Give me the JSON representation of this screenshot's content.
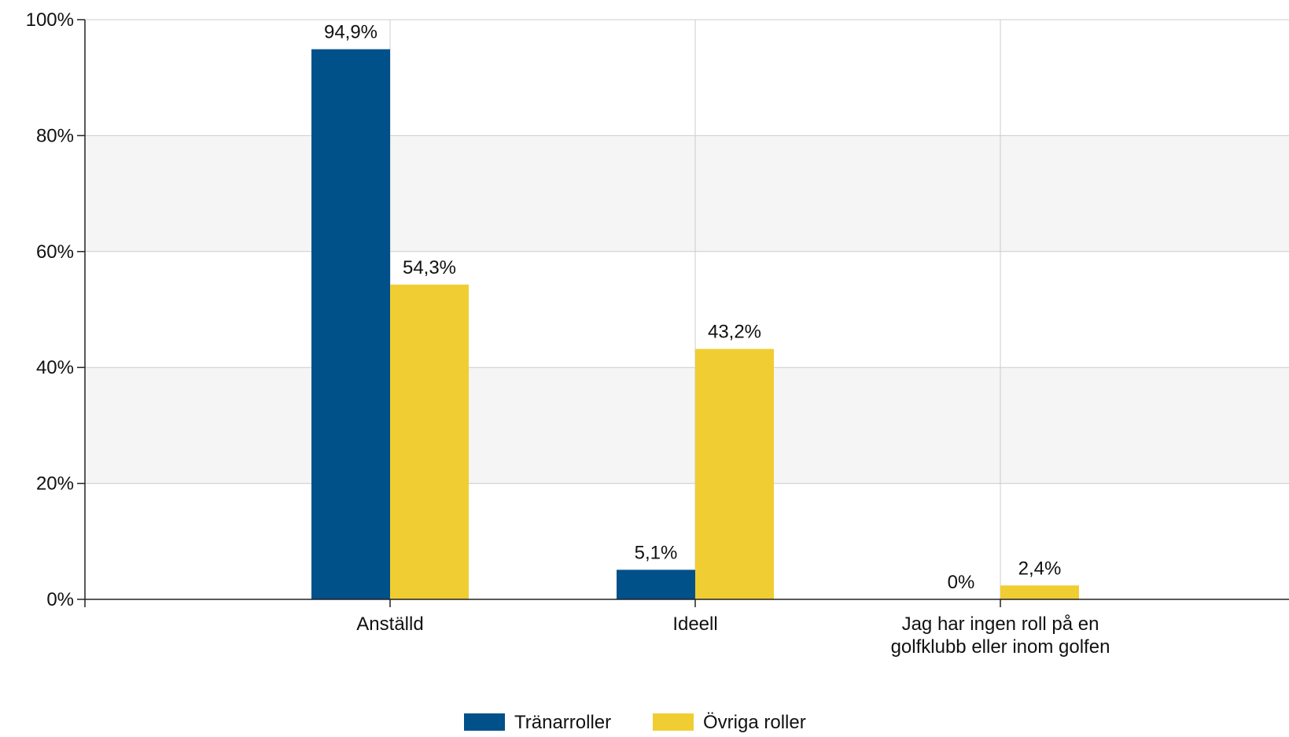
{
  "chart_data": {
    "type": "bar",
    "categories": [
      [
        "Anställd"
      ],
      [
        "Ideell"
      ],
      [
        "Jag har ingen roll på en",
        "golfklubb eller inom golfen"
      ]
    ],
    "series": [
      {
        "name": "Tränarroller",
        "color": "#00508a",
        "values": [
          94.9,
          5.1,
          0
        ],
        "labels": [
          "94,9%",
          "5,1%",
          "0%"
        ]
      },
      {
        "name": "Övriga roller",
        "color": "#f0cd32",
        "values": [
          54.3,
          43.2,
          2.4
        ],
        "labels": [
          "54,3%",
          "43,2%",
          "2,4%"
        ]
      }
    ],
    "ylim": [
      0,
      100
    ],
    "yticks": [
      0,
      20,
      40,
      60,
      80,
      100
    ],
    "ytick_labels": [
      "0%",
      "20%",
      "40%",
      "60%",
      "80%",
      "100%"
    ],
    "grid": true,
    "alternating_band_color": "#f5f5f5",
    "legend_position": "bottom-center"
  }
}
